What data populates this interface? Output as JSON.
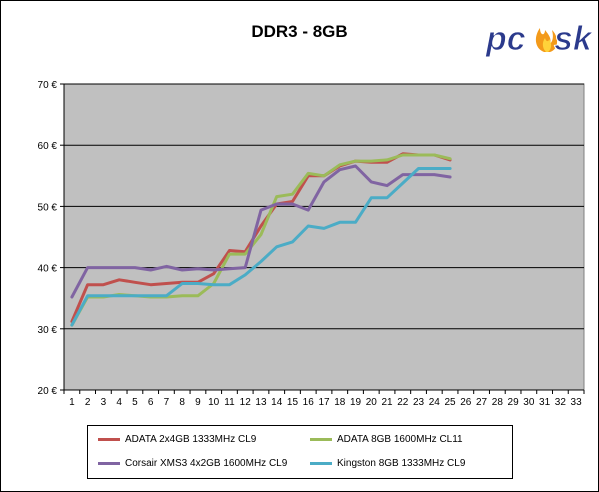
{
  "title": "DDR3 - 8GB",
  "logo": {
    "text": "pc",
    "text2": "sk",
    "icon": "flame-icon"
  },
  "colors": {
    "plot_bg": "#c0c0c0",
    "grid": "#000000",
    "series": [
      "#c0504d",
      "#9bbb59",
      "#8064a2",
      "#4bacc6"
    ]
  },
  "chart_data": {
    "type": "line",
    "x": [
      1,
      2,
      3,
      4,
      5,
      6,
      7,
      8,
      9,
      10,
      11,
      12,
      13,
      14,
      15,
      16,
      17,
      18,
      19,
      20,
      21,
      22,
      23,
      24,
      25
    ],
    "xticks": [
      1,
      2,
      3,
      4,
      5,
      6,
      7,
      8,
      9,
      10,
      11,
      12,
      13,
      14,
      15,
      16,
      17,
      18,
      19,
      20,
      21,
      22,
      23,
      24,
      25,
      26,
      27,
      28,
      29,
      30,
      31,
      32,
      33
    ],
    "xlim": [
      1,
      33
    ],
    "ylim": [
      20,
      70
    ],
    "yticks": [
      20,
      30,
      40,
      50,
      60,
      70
    ],
    "ytick_labels": [
      "20 €",
      "30 €",
      "40 €",
      "50 €",
      "60 €",
      "70 €"
    ],
    "grid": "horizontal",
    "legend_position": "bottom",
    "series": [
      {
        "name": "ADATA 2x4GB 1333MHz CL9",
        "values": [
          31.2,
          37.2,
          37.2,
          38.0,
          37.6,
          37.2,
          37.4,
          37.6,
          37.6,
          39.0,
          42.8,
          42.6,
          46.8,
          50.4,
          50.8,
          55.0,
          55.0,
          56.6,
          57.4,
          57.2,
          57.2,
          58.6,
          58.4,
          58.4,
          57.6
        ]
      },
      {
        "name": "ADATA 8GB 1600MHz CL11",
        "values": [
          30.6,
          35.2,
          35.2,
          35.6,
          35.4,
          35.2,
          35.2,
          35.4,
          35.4,
          37.4,
          42.2,
          42.2,
          45.4,
          51.6,
          52.0,
          55.4,
          55.0,
          56.8,
          57.4,
          57.4,
          57.6,
          58.4,
          58.4,
          58.4,
          57.8
        ]
      },
      {
        "name": "Corsair XMS3 4x2GB 1600MHz CL9",
        "values": [
          35.2,
          40.0,
          40.0,
          40.0,
          40.0,
          39.6,
          40.2,
          39.6,
          39.8,
          39.6,
          39.8,
          40.0,
          49.4,
          50.4,
          50.4,
          49.4,
          54.0,
          56.0,
          56.6,
          54.0,
          53.4,
          55.2,
          55.2,
          55.2,
          54.8
        ]
      },
      {
        "name": "Kingston 8GB 1333MHz CL9",
        "values": [
          30.6,
          35.4,
          35.4,
          35.4,
          35.4,
          35.4,
          35.4,
          37.4,
          37.4,
          37.2,
          37.2,
          38.8,
          41.0,
          43.4,
          44.2,
          46.8,
          46.4,
          47.4,
          47.4,
          51.4,
          51.4,
          53.8,
          56.2,
          56.2,
          56.2
        ]
      }
    ]
  }
}
